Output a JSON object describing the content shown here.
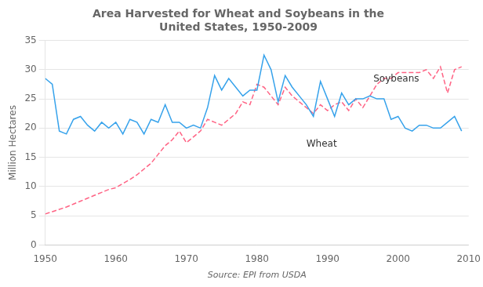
{
  "chart_data": {
    "type": "line",
    "title": "Area Harvested for Wheat and Soybeans in the\nUnited States, 1950-2009",
    "ylabel": "Million Hectares",
    "caption": "Source: EPI from USDA",
    "x": [
      1950,
      1951,
      1952,
      1953,
      1954,
      1955,
      1956,
      1957,
      1958,
      1959,
      1960,
      1961,
      1962,
      1963,
      1964,
      1965,
      1966,
      1967,
      1968,
      1969,
      1970,
      1971,
      1972,
      1973,
      1974,
      1975,
      1976,
      1977,
      1978,
      1979,
      1980,
      1981,
      1982,
      1983,
      1984,
      1985,
      1986,
      1987,
      1988,
      1989,
      1990,
      1991,
      1992,
      1993,
      1994,
      1995,
      1996,
      1997,
      1998,
      1999,
      2000,
      2001,
      2002,
      2003,
      2004,
      2005,
      2006,
      2007,
      2008,
      2009
    ],
    "series": [
      {
        "name": "Wheat",
        "line_style": "solid",
        "values": [
          28.5,
          27.5,
          19.5,
          19.0,
          21.5,
          22.0,
          20.5,
          19.5,
          21.0,
          20.0,
          21.0,
          19.0,
          21.5,
          21.0,
          19.0,
          21.5,
          21.0,
          24.0,
          21.0,
          21.0,
          20.0,
          20.5,
          20.0,
          23.5,
          29.0,
          26.5,
          28.5,
          27.0,
          25.5,
          26.5,
          26.5,
          32.5,
          30.0,
          24.5,
          29.0,
          27.0,
          25.5,
          24.0,
          22.0,
          28.0,
          25.0,
          22.0,
          26.0,
          24.0,
          25.0,
          25.0,
          25.5,
          25.0,
          25.0,
          21.5,
          22.0,
          20.0,
          19.5,
          20.5,
          20.5,
          20.0,
          20.0,
          21.0,
          22.0,
          19.5
        ]
      },
      {
        "name": "Soybeans",
        "line_style": "dashed",
        "values": [
          5.3,
          5.7,
          6.1,
          6.5,
          7.0,
          7.5,
          8.0,
          8.5,
          9.0,
          9.5,
          9.8,
          10.5,
          11.2,
          12.0,
          13.0,
          14.0,
          15.5,
          17.0,
          18.0,
          19.5,
          17.5,
          18.5,
          19.5,
          21.5,
          21.0,
          20.5,
          21.5,
          22.5,
          24.5,
          24.0,
          27.5,
          27.0,
          25.5,
          24.0,
          27.0,
          25.5,
          24.5,
          23.5,
          22.5,
          24.0,
          23.0,
          24.0,
          24.5,
          23.0,
          25.0,
          23.5,
          25.5,
          27.5,
          28.5,
          28.5,
          29.5,
          29.5,
          29.5,
          29.5,
          30.0,
          28.5,
          30.5,
          26.0,
          30.0,
          30.5
        ]
      }
    ],
    "annotations": [
      {
        "text": "Wheat",
        "x": 1987,
        "y": 16.8
      },
      {
        "text": "Soybeans",
        "x": 1996.5,
        "y": 28.0
      }
    ],
    "xlim": [
      1950,
      2010
    ],
    "xticks": [
      1950,
      1960,
      1970,
      1980,
      1990,
      2000,
      2010
    ],
    "ylim": [
      0,
      35
    ],
    "yticks": [
      0,
      5,
      10,
      15,
      20,
      25,
      30,
      35
    ],
    "grid": "y",
    "legend": "none"
  }
}
